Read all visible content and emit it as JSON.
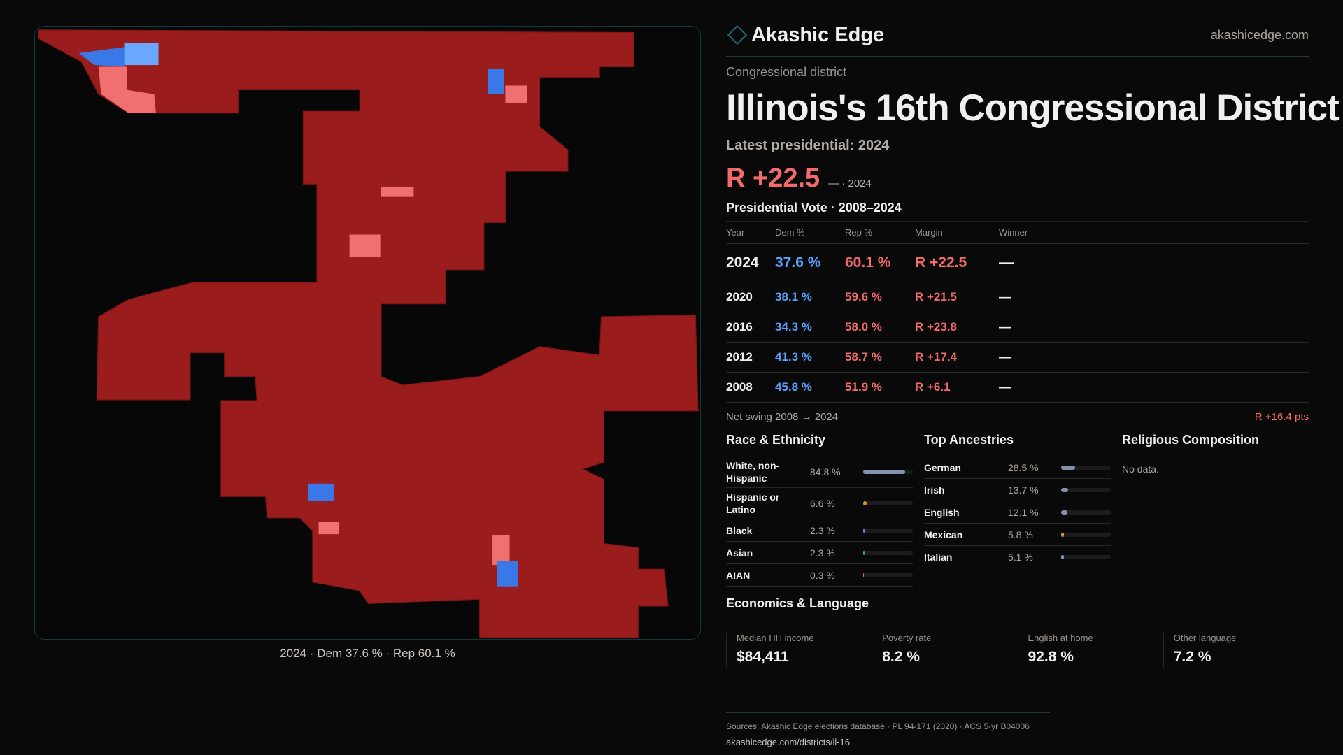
{
  "brand": {
    "name": "Akashic Edge",
    "site": "akashicedge.com"
  },
  "kicker": "Congressional district",
  "title": "Illinois's 16th Congressional District",
  "latest": "Latest presidential: 2024",
  "margin": {
    "value": "R +22.5",
    "sub": "— · 2024"
  },
  "vote": {
    "heading": "Presidential Vote · 2008–2024",
    "headers": [
      "Year",
      "Dem %",
      "Rep %",
      "Margin",
      "Winner"
    ],
    "rows": [
      {
        "year": "2024",
        "dem": "37.6 %",
        "rep": "60.1 %",
        "margin": "R +22.5",
        "winner": "—"
      },
      {
        "year": "2020",
        "dem": "38.1 %",
        "rep": "59.6 %",
        "margin": "R +21.5",
        "winner": "—"
      },
      {
        "year": "2016",
        "dem": "34.3 %",
        "rep": "58.0 %",
        "margin": "R +23.8",
        "winner": "—"
      },
      {
        "year": "2012",
        "dem": "41.3 %",
        "rep": "58.7 %",
        "margin": "R +17.4",
        "winner": "—"
      },
      {
        "year": "2008",
        "dem": "45.8 %",
        "rep": "51.9 %",
        "margin": "R +6.1",
        "winner": "—"
      }
    ]
  },
  "swing": {
    "label": "Net swing 2008 → 2024",
    "value": "R +16.4 pts"
  },
  "race": {
    "heading": "Race & Ethnicity",
    "items": [
      {
        "label": "White, non-Hispanic",
        "pct": "84.8 %",
        "value": 84.8,
        "color": "#8391a8"
      },
      {
        "label": "Hispanic or Latino",
        "pct": "6.6 %",
        "value": 6.6,
        "color": "#e0901a"
      },
      {
        "label": "Black",
        "pct": "2.3 %",
        "value": 2.3,
        "color": "#9b6bd6"
      },
      {
        "label": "Asian",
        "pct": "2.3 %",
        "value": 2.3,
        "color": "#2fb58a"
      },
      {
        "label": "AIAN",
        "pct": "0.3 %",
        "value": 0.3,
        "color": "#d07a1a"
      }
    ]
  },
  "ancestry": {
    "heading": "Top Ancestries",
    "items": [
      {
        "label": "German",
        "pct": "28.5 %",
        "value": 28.5,
        "color": "#8391a8"
      },
      {
        "label": "Irish",
        "pct": "13.7 %",
        "value": 13.7,
        "color": "#8391a8"
      },
      {
        "label": "English",
        "pct": "12.1 %",
        "value": 12.1,
        "color": "#8391a8"
      },
      {
        "label": "Mexican",
        "pct": "5.8 %",
        "value": 5.8,
        "color": "#e0901a"
      },
      {
        "label": "Italian",
        "pct": "5.1 %",
        "value": 5.1,
        "color": "#8391a8"
      }
    ]
  },
  "religion": {
    "heading": "Religious Composition",
    "note": "No data."
  },
  "economics": {
    "heading": "Economics & Language",
    "stats": [
      {
        "label": "Median HH income",
        "value": "$84,411"
      },
      {
        "label": "Poverty rate",
        "value": "8.2 %"
      },
      {
        "label": "English at home",
        "value": "92.8 %"
      },
      {
        "label": "Other language",
        "value": "7.2 %"
      }
    ]
  },
  "footer": {
    "sources": "Sources: Akashic Edge elections database · PL 94-171 (2020) · ACS 5-yr B04006",
    "url": "akashicedge.com/districts/il-16"
  },
  "map": {
    "caption": "2024 · Dem 37.6 % · Rep 60.1 %",
    "colors": {
      "rep_strong": "#9b1c1c",
      "rep_lean": "#f07070",
      "dem_lean": "#6aa8ff",
      "dem_strong": "#2a6ae0"
    }
  }
}
